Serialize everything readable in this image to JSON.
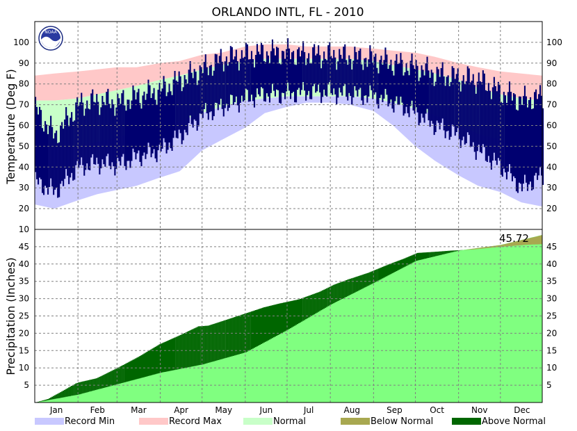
{
  "chart_data": [
    {
      "type": "area",
      "panel": "temperature",
      "title": "ORLANDO INTL, FL - 2010",
      "ylabel": "Temperature (Deg F)",
      "ylim": [
        10,
        110
      ],
      "yticks": [
        20,
        30,
        40,
        50,
        60,
        70,
        80,
        90,
        100
      ],
      "months": [
        "Jan",
        "Feb",
        "Mar",
        "Apr",
        "May",
        "Jun",
        "Jul",
        "Aug",
        "Sep",
        "Oct",
        "Nov",
        "Dec"
      ],
      "grid": true,
      "x_days": [
        1,
        15,
        32,
        46,
        60,
        74,
        91,
        105,
        121,
        135,
        152,
        166,
        182,
        196,
        213,
        227,
        244,
        258,
        274,
        288,
        305,
        319,
        335,
        350,
        365
      ],
      "record_max": [
        84,
        85,
        86,
        87,
        88,
        88,
        90,
        91,
        94,
        95,
        98,
        99,
        99,
        98,
        98,
        98,
        97,
        96,
        95,
        93,
        90,
        88,
        86,
        85,
        84
      ],
      "record_min": [
        22,
        20,
        24,
        27,
        29,
        31,
        35,
        38,
        48,
        53,
        59,
        66,
        69,
        71,
        71,
        70,
        67,
        60,
        50,
        43,
        36,
        31,
        28,
        23,
        21
      ],
      "normal_max": [
        72,
        72,
        73,
        75,
        77,
        79,
        82,
        84,
        87,
        89,
        91,
        92,
        92,
        92,
        92,
        92,
        91,
        89,
        87,
        85,
        82,
        78,
        75,
        73,
        72
      ],
      "normal_min": [
        50,
        49,
        50,
        52,
        54,
        57,
        59,
        62,
        66,
        69,
        72,
        73,
        74,
        74,
        74,
        74,
        73,
        71,
        68,
        65,
        60,
        56,
        53,
        50,
        50
      ],
      "observed_high": [
        68,
        55,
        70,
        72,
        71,
        74,
        77,
        82,
        87,
        92,
        94,
        95,
        95,
        94,
        94,
        93,
        92,
        90,
        88,
        85,
        83,
        82,
        76,
        72,
        74
      ],
      "observed_low": [
        33,
        28,
        40,
        42,
        41,
        45,
        48,
        55,
        65,
        69,
        73,
        75,
        75,
        76,
        76,
        75,
        74,
        71,
        66,
        60,
        55,
        48,
        40,
        30,
        36
      ]
    },
    {
      "type": "area",
      "panel": "precipitation",
      "ylabel": "Precipitation (Inches)",
      "ylim": [
        0,
        50
      ],
      "yticks": [
        5,
        10,
        15,
        20,
        25,
        30,
        35,
        40,
        45
      ],
      "months": [
        "Jan",
        "Feb",
        "Mar",
        "Apr",
        "May",
        "Jun",
        "Jul",
        "Aug",
        "Sep",
        "Oct",
        "Nov",
        "Dec"
      ],
      "grid": true,
      "annotation": "45.72",
      "normal_cumulative": {
        "x": [
          1,
          32,
          60,
          91,
          121,
          152,
          182,
          213,
          244,
          274,
          305,
          335,
          365
        ],
        "y": [
          0,
          2.3,
          5.3,
          8.6,
          11,
          14.5,
          21,
          28.3,
          34.6,
          40.9,
          43.9,
          45.5,
          48.4
        ]
      },
      "observed_cumulative": {
        "x": [
          1,
          10,
          20,
          30,
          32,
          45,
          60,
          75,
          90,
          105,
          118,
          125,
          135,
          150,
          165,
          175,
          190,
          205,
          215,
          225,
          240,
          255,
          265,
          275,
          290,
          300,
          315,
          330,
          345,
          355,
          365
        ],
        "y": [
          0,
          1.0,
          3.2,
          5.5,
          5.8,
          7,
          10,
          13.2,
          16.8,
          19.5,
          22.0,
          22.2,
          23.5,
          25.5,
          27.5,
          28.5,
          29.8,
          32.0,
          34.0,
          35.5,
          37.5,
          40.0,
          41.5,
          43.2,
          43.6,
          43.9,
          44.2,
          44.8,
          45.3,
          45.6,
          45.72
        ]
      }
    }
  ],
  "legend": [
    {
      "label": "Record Min",
      "color": "#c8c8ff"
    },
    {
      "label": "Record Max",
      "color": "#ffc8c8"
    },
    {
      "label": "Normal",
      "color": "#c8ffc8"
    },
    {
      "label": "Below Normal",
      "color": "#a8a850"
    },
    {
      "label": "Above Normal",
      "color": "#006600"
    }
  ],
  "colors": {
    "observed": "#000070",
    "normal_precip": "#80ff80",
    "above_normal": "#006600",
    "below_normal": "#a8a850"
  },
  "logo_text": "NOAA"
}
